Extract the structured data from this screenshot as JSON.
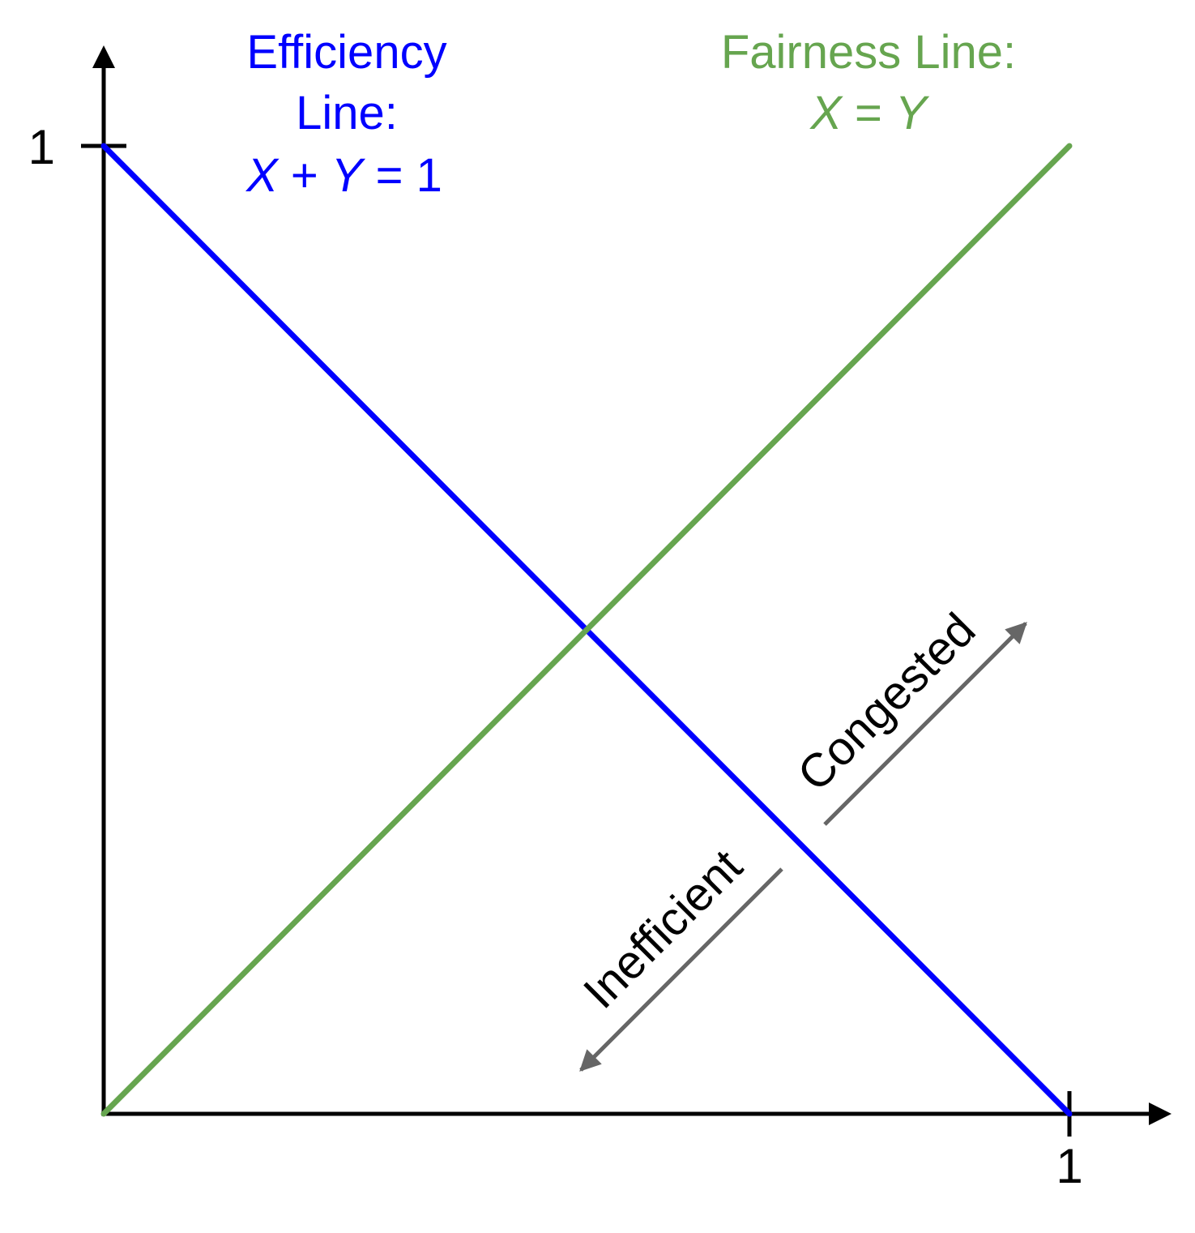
{
  "colors": {
    "efficiency": "#0000ff",
    "fairness": "#66a54f",
    "axis": "#000000",
    "arrow": "#666666"
  },
  "chart_data": {
    "type": "line",
    "title": "",
    "xlabel": "",
    "ylabel": "",
    "xlim": [
      0,
      1
    ],
    "ylim": [
      0,
      1
    ],
    "grid": false,
    "x_ticks": [
      {
        "value": 1,
        "label": "1"
      }
    ],
    "y_ticks": [
      {
        "value": 1,
        "label": "1"
      }
    ],
    "series": [
      {
        "name": "Efficiency Line",
        "equation": "X + Y = 1",
        "color": "#0000ff",
        "points": [
          [
            0,
            1
          ],
          [
            1,
            0
          ]
        ]
      },
      {
        "name": "Fairness Line",
        "equation": "X = Y",
        "color": "#66a54f",
        "points": [
          [
            0,
            0
          ],
          [
            1,
            1
          ]
        ]
      }
    ],
    "annotations": [
      {
        "text": "Congested",
        "direction": "away-from-origin",
        "color": "#666666"
      },
      {
        "text": "Inefficient",
        "direction": "toward-origin",
        "color": "#666666"
      }
    ],
    "labels": {
      "efficiency_line1": "Efficiency",
      "efficiency_line2": "Line:",
      "efficiency_eq_x": "X",
      "efficiency_eq_plus": " + ",
      "efficiency_eq_y": "Y",
      "efficiency_eq_rest": " = 1",
      "fairness_line1": "Fairness Line:",
      "fairness_eq_x": "X",
      "fairness_eq_eq": " = ",
      "fairness_eq_y": "Y"
    }
  }
}
